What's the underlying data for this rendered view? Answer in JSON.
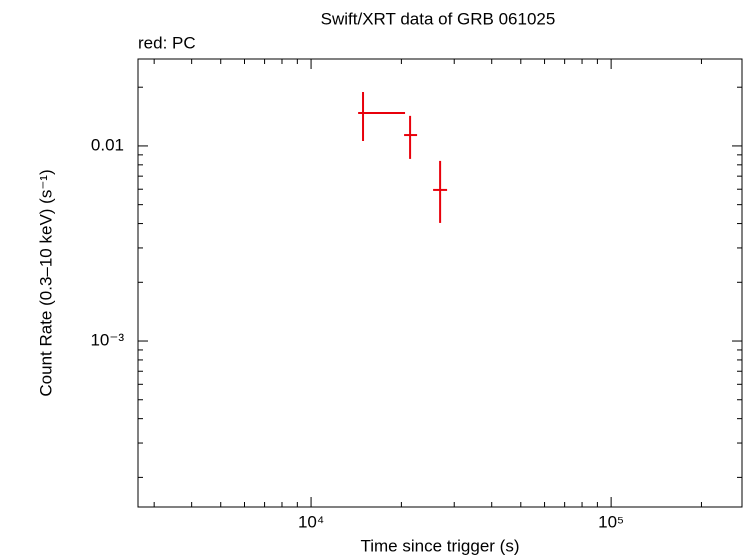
{
  "chart_data": {
    "type": "scatter",
    "title": "Swift/XRT data of GRB 061025",
    "subtitle": "red: PC",
    "x_label": "Time since trigger (s)",
    "y_label": "Count Rate (0.3–10 keV) (s⁻¹)",
    "log_x": true,
    "log_y": true,
    "xlim": [
      2650,
      273000
    ],
    "ylim": [
      0.000141,
      0.0279
    ],
    "xticks": [
      {
        "value": 10000,
        "label": "10⁴"
      },
      {
        "value": 100000,
        "label": "10⁵"
      }
    ],
    "yticks": [
      {
        "value": 0.001,
        "label": "10⁻³"
      },
      0.01
    ],
    "x_minor_ticks": [
      3000,
      4000,
      5000,
      6000,
      7000,
      8000,
      9000,
      20000,
      30000,
      40000,
      50000,
      60000,
      70000,
      80000,
      90000,
      200000
    ],
    "y_minor_ticks": [
      0.0002,
      0.0003,
      0.0004,
      0.0005,
      0.0006,
      0.0007,
      0.0008,
      0.0009,
      0.002,
      0.003,
      0.004,
      0.005,
      0.006,
      0.007,
      0.008,
      0.009,
      0.02
    ],
    "series": [
      {
        "name": "PC",
        "color": "#e8000b",
        "x": [
          14900,
          21380,
          26920
        ],
        "values": [
          0.01476,
          0.01137,
          0.00595
        ],
        "x_lower": [
          14350,
          20420,
          25510
        ],
        "x_upper": [
          20570,
          22560,
          28400
        ],
        "y_lower": [
          0.0106,
          0.00858,
          0.00403
        ],
        "y_upper": [
          0.0189,
          0.01426,
          0.00838
        ]
      }
    ]
  }
}
